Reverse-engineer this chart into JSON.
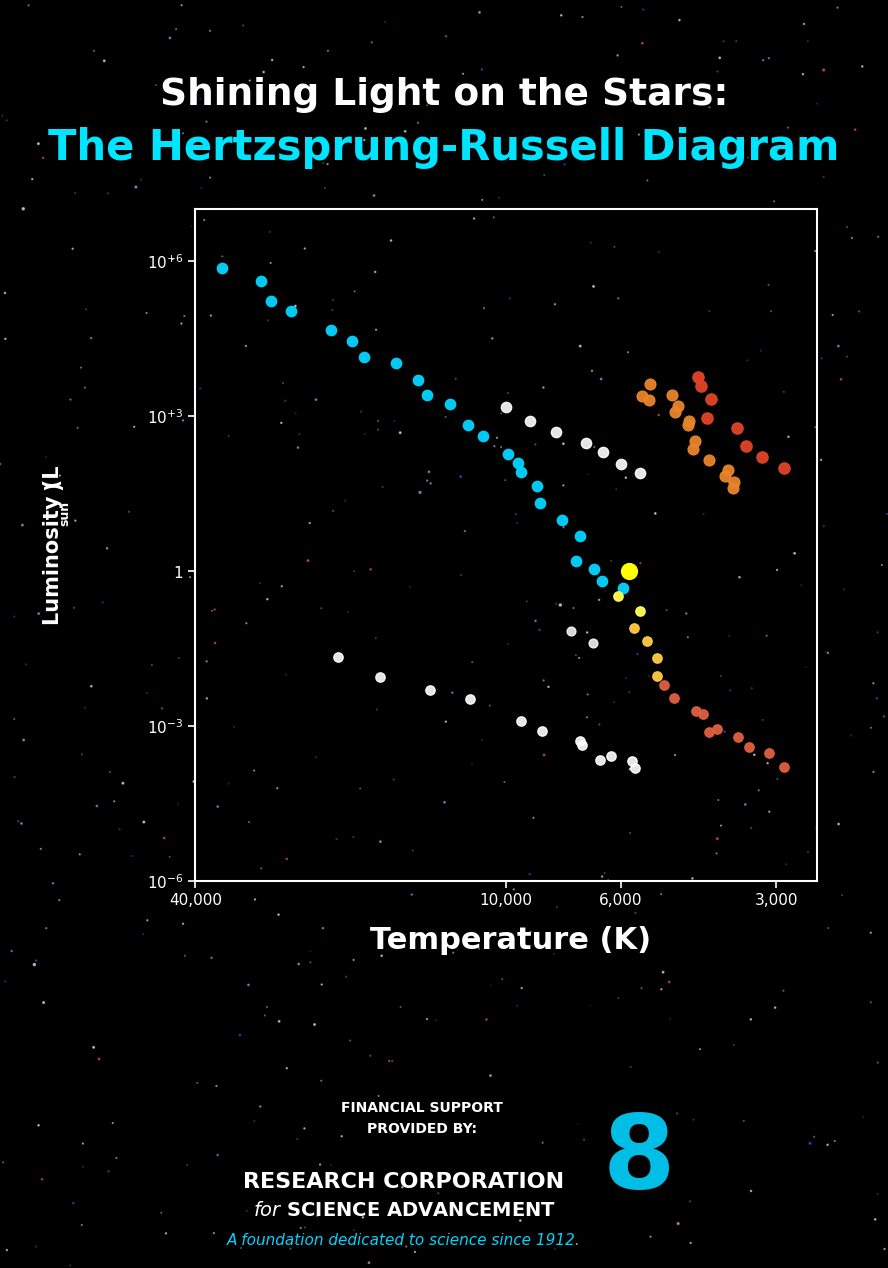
{
  "title_line1": "Shining Light on the Stars:",
  "title_line2": "The Hertzsprung-Russell Diagram",
  "title_color1": "#ffffff",
  "title_color2": "#00e5ff",
  "xlabel": "Temperature (K)",
  "bg_color": "#000000",
  "axis_color": "#ffffff",
  "tick_color": "#ffffff",
  "footer_support": "FINANCIAL SUPPORT\nPROVIDED BY:",
  "footer_corp": "RESEARCH CORPORATION",
  "footer_adv": "for SCIENCE ADVANCEMENT",
  "footer_tag": "A foundation dedicated to science since 1912.",
  "footer_cyan": "#00d4ff",
  "star_cyan": "#00d4ff",
  "star_orange": "#e8852a",
  "star_red": "#e04428",
  "star_yellow": "#ffff00",
  "star_white": "#ffffff"
}
